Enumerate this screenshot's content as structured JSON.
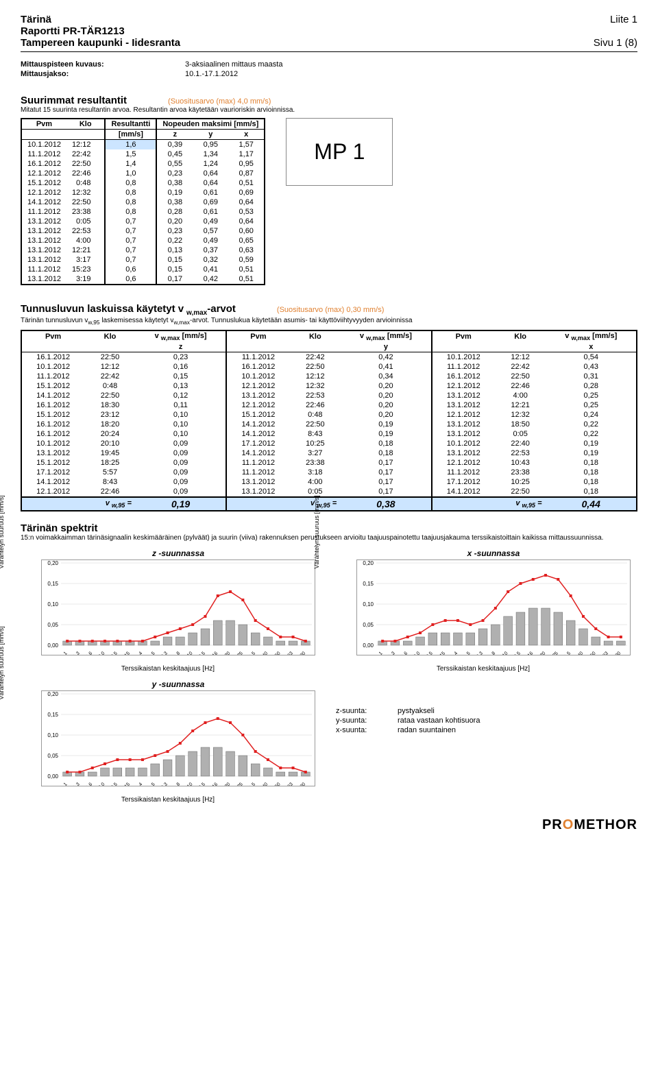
{
  "header": {
    "title": "Tärinä",
    "report": "Raportti PR-TÄR1213",
    "project": "Tampereen kaupunki - Iidesranta",
    "liite": "Liite 1",
    "page": "Sivu 1 (8)"
  },
  "meta": {
    "kuvaus_label": "Mittauspisteen kuvaus:",
    "kuvaus": "3-aksiaalinen mittaus maasta",
    "jakso_label": "Mittausjakso:",
    "jakso": "10.1.-17.1.2012"
  },
  "sec1": {
    "title": "Suurimmat resultantit",
    "suositus": "(Suositusarvo (max) 4,0 mm/s)",
    "sub": "Mitatut 15 suurinta resultantin arvoa. Resultantin arvoa käytetään vaurioriskin arvioinnissa.",
    "cols": [
      "Pvm",
      "Klo",
      "Resultantti",
      "Nopeuden maksimi [mm/s]"
    ],
    "cols2": [
      "[mm/s]",
      "z",
      "y",
      "x"
    ],
    "rows": [
      [
        "10.1.2012",
        "12:12",
        "1,6",
        "0,39",
        "0,95",
        "1,57"
      ],
      [
        "11.1.2012",
        "22:42",
        "1,5",
        "0,45",
        "1,34",
        "1,17"
      ],
      [
        "16.1.2012",
        "22:50",
        "1,4",
        "0,55",
        "1,24",
        "0,95"
      ],
      [
        "12.1.2012",
        "22:46",
        "1,0",
        "0,23",
        "0,64",
        "0,87"
      ],
      [
        "15.1.2012",
        "0:48",
        "0,8",
        "0,38",
        "0,64",
        "0,51"
      ],
      [
        "12.1.2012",
        "12:32",
        "0,8",
        "0,19",
        "0,61",
        "0,69"
      ],
      [
        "14.1.2012",
        "22:50",
        "0,8",
        "0,38",
        "0,69",
        "0,64"
      ],
      [
        "11.1.2012",
        "23:38",
        "0,8",
        "0,28",
        "0,61",
        "0,53"
      ],
      [
        "13.1.2012",
        "0:05",
        "0,7",
        "0,20",
        "0,49",
        "0,64"
      ],
      [
        "13.1.2012",
        "22:53",
        "0,7",
        "0,23",
        "0,57",
        "0,60"
      ],
      [
        "13.1.2012",
        "4:00",
        "0,7",
        "0,22",
        "0,49",
        "0,65"
      ],
      [
        "13.1.2012",
        "12:21",
        "0,7",
        "0,13",
        "0,37",
        "0,63"
      ],
      [
        "13.1.2012",
        "3:17",
        "0,7",
        "0,15",
        "0,32",
        "0,59"
      ],
      [
        "11.1.2012",
        "15:23",
        "0,6",
        "0,15",
        "0,41",
        "0,51"
      ],
      [
        "13.1.2012",
        "3:19",
        "0,6",
        "0,17",
        "0,42",
        "0,51"
      ]
    ],
    "mp": "MP 1"
  },
  "sec2": {
    "title": "Tunnusluvun laskuissa käytetyt v",
    "title_sub": "w,max",
    "title_suf": "-arvot",
    "suositus": "(Suositusarvo (max) 0,30 mm/s)",
    "sub": "Tärinän tunnusluvun v",
    "sub2": " laskemisessa käytetyt v",
    "sub3": "-arvot. Tunnuslukua käytetään asumis- tai käyttöviihtyvyyden arvioinnissa",
    "hdr": [
      "Pvm",
      "Klo",
      "v",
      "Pvm",
      "Klo",
      "v",
      "Pvm",
      "Klo",
      "v"
    ],
    "hdr_sub": "w,max",
    "hdr_unit": "[mm/s]",
    "axes": [
      "z",
      "y",
      "x"
    ],
    "rows": [
      [
        "16.1.2012",
        "22:50",
        "0,23",
        "11.1.2012",
        "22:42",
        "0,42",
        "10.1.2012",
        "12:12",
        "0,54"
      ],
      [
        "10.1.2012",
        "12:12",
        "0,16",
        "16.1.2012",
        "22:50",
        "0,41",
        "11.1.2012",
        "22:42",
        "0,43"
      ],
      [
        "11.1.2012",
        "22:42",
        "0,15",
        "10.1.2012",
        "12:12",
        "0,34",
        "16.1.2012",
        "22:50",
        "0,31"
      ],
      [
        "15.1.2012",
        "0:48",
        "0,13",
        "12.1.2012",
        "12:32",
        "0,20",
        "12.1.2012",
        "22:46",
        "0,28"
      ],
      [
        "14.1.2012",
        "22:50",
        "0,12",
        "13.1.2012",
        "22:53",
        "0,20",
        "13.1.2012",
        "4:00",
        "0,25"
      ],
      [
        "16.1.2012",
        "18:30",
        "0,11",
        "12.1.2012",
        "22:46",
        "0,20",
        "13.1.2012",
        "12:21",
        "0,25"
      ],
      [
        "15.1.2012",
        "23:12",
        "0,10",
        "15.1.2012",
        "0:48",
        "0,20",
        "12.1.2012",
        "12:32",
        "0,24"
      ],
      [
        "16.1.2012",
        "18:20",
        "0,10",
        "14.1.2012",
        "22:50",
        "0,19",
        "13.1.2012",
        "18:50",
        "0,22"
      ],
      [
        "16.1.2012",
        "20:24",
        "0,10",
        "14.1.2012",
        "8:43",
        "0,19",
        "13.1.2012",
        "0:05",
        "0,22"
      ],
      [
        "10.1.2012",
        "20:10",
        "0,09",
        "17.1.2012",
        "10:25",
        "0,18",
        "10.1.2012",
        "22:40",
        "0,19"
      ],
      [
        "13.1.2012",
        "19:45",
        "0,09",
        "14.1.2012",
        "3:27",
        "0,18",
        "13.1.2012",
        "22:53",
        "0,19"
      ],
      [
        "15.1.2012",
        "18:25",
        "0,09",
        "11.1.2012",
        "23:38",
        "0,17",
        "12.1.2012",
        "10:43",
        "0,18"
      ],
      [
        "17.1.2012",
        "5:57",
        "0,09",
        "11.1.2012",
        "3:18",
        "0,17",
        "11.1.2012",
        "23:38",
        "0,18"
      ],
      [
        "14.1.2012",
        "8:43",
        "0,09",
        "13.1.2012",
        "4:00",
        "0,17",
        "17.1.2012",
        "10:25",
        "0,18"
      ],
      [
        "12.1.2012",
        "22:46",
        "0,09",
        "13.1.2012",
        "0:05",
        "0,17",
        "14.1.2012",
        "22:50",
        "0,18"
      ]
    ],
    "vw_label": "v",
    "vw_sub": "w,95",
    "vw_eq": " =",
    "vw": [
      "0,19",
      "0,38",
      "0,44"
    ]
  },
  "sec3": {
    "title": "Tärinän spektrit",
    "sub": "15:n voimakkaimman tärinäsignaalin keskimääräinen (pylväät) ja suurin (viiva) rakennuksen perustukseen arvioitu taajuuspainotettu taajuusjakauma terssikaistoittain kaikissa mittaussuunnissa.",
    "xlabel": "Terssikaistan keskitaajuus [Hz]",
    "ylabel": "Värähtelyn suuruus [mm/s]",
    "yticks": [
      "0,20",
      "0,15",
      "0,10",
      "0,05",
      "0,00"
    ],
    "ymax": 0.2,
    "xticks": [
      "1",
      "1,3",
      "1,6",
      "2,0",
      "2,5",
      "3,15",
      "4",
      "5",
      "6,3",
      "8",
      "10",
      "12,5",
      "16",
      "20",
      "25",
      "31,5",
      "40",
      "50",
      "63",
      "80"
    ],
    "charts": {
      "z": {
        "title": "z -suunnassa",
        "bars": [
          0.01,
          0.01,
          0.01,
          0.01,
          0.01,
          0.01,
          0.01,
          0.01,
          0.02,
          0.02,
          0.03,
          0.04,
          0.06,
          0.06,
          0.05,
          0.03,
          0.02,
          0.01,
          0.01,
          0.01
        ],
        "line": [
          0.01,
          0.01,
          0.01,
          0.01,
          0.01,
          0.01,
          0.01,
          0.02,
          0.03,
          0.04,
          0.05,
          0.07,
          0.12,
          0.13,
          0.11,
          0.06,
          0.04,
          0.02,
          0.02,
          0.01
        ]
      },
      "x": {
        "title": "x -suunnassa",
        "bars": [
          0.01,
          0.01,
          0.01,
          0.02,
          0.03,
          0.03,
          0.03,
          0.03,
          0.04,
          0.05,
          0.07,
          0.08,
          0.09,
          0.09,
          0.08,
          0.06,
          0.04,
          0.02,
          0.01,
          0.01
        ],
        "line": [
          0.01,
          0.01,
          0.02,
          0.03,
          0.05,
          0.06,
          0.06,
          0.05,
          0.06,
          0.09,
          0.13,
          0.15,
          0.16,
          0.17,
          0.16,
          0.12,
          0.07,
          0.04,
          0.02,
          0.02
        ]
      },
      "y": {
        "title": "y -suunnassa",
        "bars": [
          0.01,
          0.01,
          0.01,
          0.02,
          0.02,
          0.02,
          0.02,
          0.03,
          0.04,
          0.05,
          0.06,
          0.07,
          0.07,
          0.06,
          0.05,
          0.03,
          0.02,
          0.01,
          0.01,
          0.01
        ],
        "line": [
          0.01,
          0.01,
          0.02,
          0.03,
          0.04,
          0.04,
          0.04,
          0.05,
          0.06,
          0.08,
          0.11,
          0.13,
          0.14,
          0.13,
          0.1,
          0.06,
          0.04,
          0.02,
          0.02,
          0.01
        ]
      }
    },
    "colors": {
      "bar": "#b0b0b0",
      "line": "#e02020",
      "marker": "#e02020",
      "grid": "#d0d0d0"
    },
    "legend": [
      [
        "z-suunta:",
        "pystyakseli"
      ],
      [
        "y-suunta:",
        "rataa vastaan kohtisuora"
      ],
      [
        "x-suunta:",
        "radan suuntainen"
      ]
    ]
  },
  "foot": {
    "brand": "PROMETHOR"
  }
}
